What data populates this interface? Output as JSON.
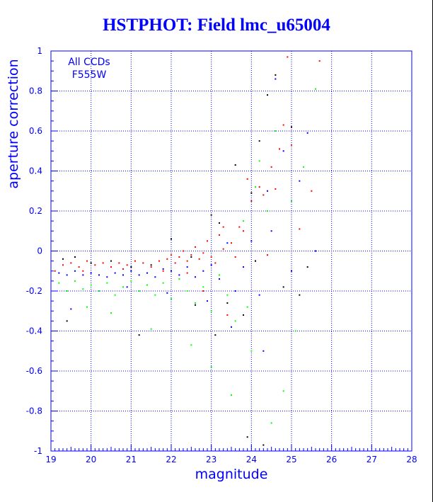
{
  "chart_data": {
    "type": "scatter",
    "title": "HSTPHOT: Field lmc_u65004",
    "xlabel": "magnitude",
    "ylabel": "aperture correction",
    "xlim": [
      19,
      28
    ],
    "ylim": [
      -1,
      1
    ],
    "xticks": [
      "19",
      "20",
      "21",
      "22",
      "23",
      "24",
      "25",
      "26",
      "27",
      "28"
    ],
    "yticks": [
      "-1",
      "-0.8",
      "-0.6",
      "-0.4",
      "-0.2",
      "0",
      "0.2",
      "0.4",
      "0.6",
      "0.8",
      "1"
    ],
    "grid": true,
    "annotation": [
      "All CCDs",
      "F555W"
    ],
    "colors": {
      "axes": "#0000ff",
      "red": "#ff0000",
      "blue": "#0000ff",
      "green": "#00ff00",
      "black": "#000000"
    },
    "series": [
      {
        "color": "#ff0000",
        "points": [
          [
            19.1,
            -0.1
          ],
          [
            19.3,
            -0.07
          ],
          [
            19.5,
            -0.06
          ],
          [
            19.7,
            -0.08
          ],
          [
            19.9,
            -0.05
          ],
          [
            20.1,
            -0.07
          ],
          [
            20.3,
            -0.06
          ],
          [
            20.5,
            -0.08
          ],
          [
            20.7,
            -0.06
          ],
          [
            20.9,
            -0.07
          ],
          [
            21.1,
            -0.05
          ],
          [
            21.3,
            -0.06
          ],
          [
            21.5,
            -0.08
          ],
          [
            21.7,
            -0.05
          ],
          [
            21.9,
            -0.04
          ],
          [
            22.0,
            -0.02
          ],
          [
            22.1,
            -0.06
          ],
          [
            22.2,
            -0.03
          ],
          [
            22.3,
            0.0
          ],
          [
            22.4,
            -0.05
          ],
          [
            22.5,
            -0.02
          ],
          [
            22.6,
            0.02
          ],
          [
            22.7,
            -0.04
          ],
          [
            22.8,
            -0.01
          ],
          [
            22.9,
            0.05
          ],
          [
            23.0,
            -0.03
          ],
          [
            23.1,
            -0.06
          ],
          [
            23.2,
            0.08
          ],
          [
            23.3,
            0.01
          ],
          [
            23.5,
            0.04
          ],
          [
            23.6,
            -0.03
          ],
          [
            23.7,
            0.12
          ],
          [
            23.8,
            0.1
          ],
          [
            23.9,
            0.36
          ],
          [
            24.0,
            0.25
          ],
          [
            24.2,
            0.32
          ],
          [
            24.3,
            0.28
          ],
          [
            24.5,
            0.42
          ],
          [
            24.6,
            0.31
          ],
          [
            24.7,
            0.51
          ],
          [
            24.8,
            0.63
          ],
          [
            25.0,
            0.53
          ],
          [
            25.2,
            0.11
          ],
          [
            25.5,
            0.3
          ],
          [
            24.4,
            -0.02
          ],
          [
            24.1,
            -0.05
          ],
          [
            22.8,
            -0.2
          ],
          [
            23.4,
            -0.32
          ],
          [
            25.7,
            0.95
          ],
          [
            24.9,
            0.97
          ],
          [
            21.8,
            -0.1
          ],
          [
            20.8,
            -0.09
          ],
          [
            19.8,
            -0.1
          ],
          [
            22.4,
            -0.11
          ],
          [
            23.3,
            0.12
          ]
        ]
      },
      {
        "color": "#0000ff",
        "points": [
          [
            19.2,
            -0.11
          ],
          [
            19.4,
            -0.12
          ],
          [
            19.6,
            -0.1
          ],
          [
            19.8,
            -0.12
          ],
          [
            20.0,
            -0.11
          ],
          [
            20.2,
            -0.12
          ],
          [
            20.4,
            -0.13
          ],
          [
            20.6,
            -0.11
          ],
          [
            20.8,
            -0.12
          ],
          [
            21.0,
            -0.1
          ],
          [
            21.2,
            -0.12
          ],
          [
            21.4,
            -0.11
          ],
          [
            21.6,
            -0.13
          ],
          [
            21.8,
            -0.09
          ],
          [
            22.0,
            -0.1
          ],
          [
            22.2,
            -0.12
          ],
          [
            22.4,
            -0.08
          ],
          [
            22.6,
            -0.13
          ],
          [
            22.8,
            -0.1
          ],
          [
            23.0,
            -0.07
          ],
          [
            23.2,
            -0.14
          ],
          [
            23.4,
            0.04
          ],
          [
            23.6,
            -0.2
          ],
          [
            23.8,
            -0.08
          ],
          [
            24.0,
            0.05
          ],
          [
            24.2,
            -0.22
          ],
          [
            24.4,
            0.3
          ],
          [
            24.6,
            0.86
          ],
          [
            24.8,
            0.5
          ],
          [
            25.0,
            -0.1
          ],
          [
            25.2,
            0.35
          ],
          [
            25.4,
            0.59
          ],
          [
            23.5,
            -0.38
          ],
          [
            24.3,
            -0.5
          ],
          [
            22.9,
            -0.25
          ],
          [
            21.9,
            -0.21
          ],
          [
            20.9,
            -0.18
          ],
          [
            19.5,
            -0.29
          ],
          [
            25.6,
            0.0
          ],
          [
            24.5,
            0.1
          ]
        ]
      },
      {
        "color": "#00ff00",
        "points": [
          [
            19.2,
            -0.16
          ],
          [
            19.4,
            -0.2
          ],
          [
            19.6,
            -0.15
          ],
          [
            19.8,
            -0.19
          ],
          [
            20.0,
            -0.17
          ],
          [
            20.2,
            -0.2
          ],
          [
            20.4,
            -0.16
          ],
          [
            20.6,
            -0.22
          ],
          [
            20.8,
            -0.18
          ],
          [
            21.0,
            -0.15
          ],
          [
            21.2,
            -0.2
          ],
          [
            21.4,
            -0.17
          ],
          [
            21.6,
            -0.22
          ],
          [
            21.8,
            -0.16
          ],
          [
            22.0,
            -0.24
          ],
          [
            22.2,
            -0.14
          ],
          [
            22.4,
            -0.2
          ],
          [
            22.6,
            -0.26
          ],
          [
            22.8,
            -0.18
          ],
          [
            23.0,
            -0.3
          ],
          [
            23.2,
            -0.12
          ],
          [
            23.4,
            -0.22
          ],
          [
            23.6,
            -0.35
          ],
          [
            23.8,
            0.15
          ],
          [
            24.0,
            -0.5
          ],
          [
            24.2,
            0.45
          ],
          [
            24.4,
            0.2
          ],
          [
            24.6,
            0.6
          ],
          [
            24.8,
            -0.7
          ],
          [
            25.0,
            0.25
          ],
          [
            25.3,
            0.42
          ],
          [
            25.6,
            0.81
          ],
          [
            23.0,
            -0.58
          ],
          [
            23.5,
            -0.72
          ],
          [
            24.5,
            -0.86
          ],
          [
            22.5,
            -0.47
          ],
          [
            21.5,
            -0.39
          ],
          [
            20.5,
            -0.31
          ],
          [
            19.9,
            -0.28
          ],
          [
            25.1,
            -0.4
          ],
          [
            23.9,
            -0.28
          ],
          [
            24.1,
            0.32
          ]
        ]
      },
      {
        "color": "#000000",
        "points": [
          [
            19.3,
            -0.04
          ],
          [
            19.6,
            -0.03
          ],
          [
            20.0,
            -0.06
          ],
          [
            20.5,
            -0.05
          ],
          [
            21.0,
            -0.08
          ],
          [
            21.5,
            -0.07
          ],
          [
            22.0,
            0.06
          ],
          [
            22.5,
            -0.03
          ],
          [
            23.0,
            0.18
          ],
          [
            23.2,
            0.14
          ],
          [
            23.4,
            -0.26
          ],
          [
            23.6,
            0.43
          ],
          [
            23.8,
            -0.32
          ],
          [
            24.0,
            0.29
          ],
          [
            24.2,
            0.55
          ],
          [
            24.4,
            0.78
          ],
          [
            24.6,
            0.88
          ],
          [
            24.8,
            -0.18
          ],
          [
            25.0,
            0.62
          ],
          [
            25.2,
            -0.22
          ],
          [
            23.1,
            -0.42
          ],
          [
            23.9,
            -0.93
          ],
          [
            24.3,
            -0.97
          ],
          [
            19.4,
            -0.35
          ],
          [
            21.2,
            -0.42
          ],
          [
            22.6,
            -0.27
          ],
          [
            24.1,
            -0.05
          ],
          [
            25.4,
            -0.08
          ]
        ]
      }
    ]
  }
}
